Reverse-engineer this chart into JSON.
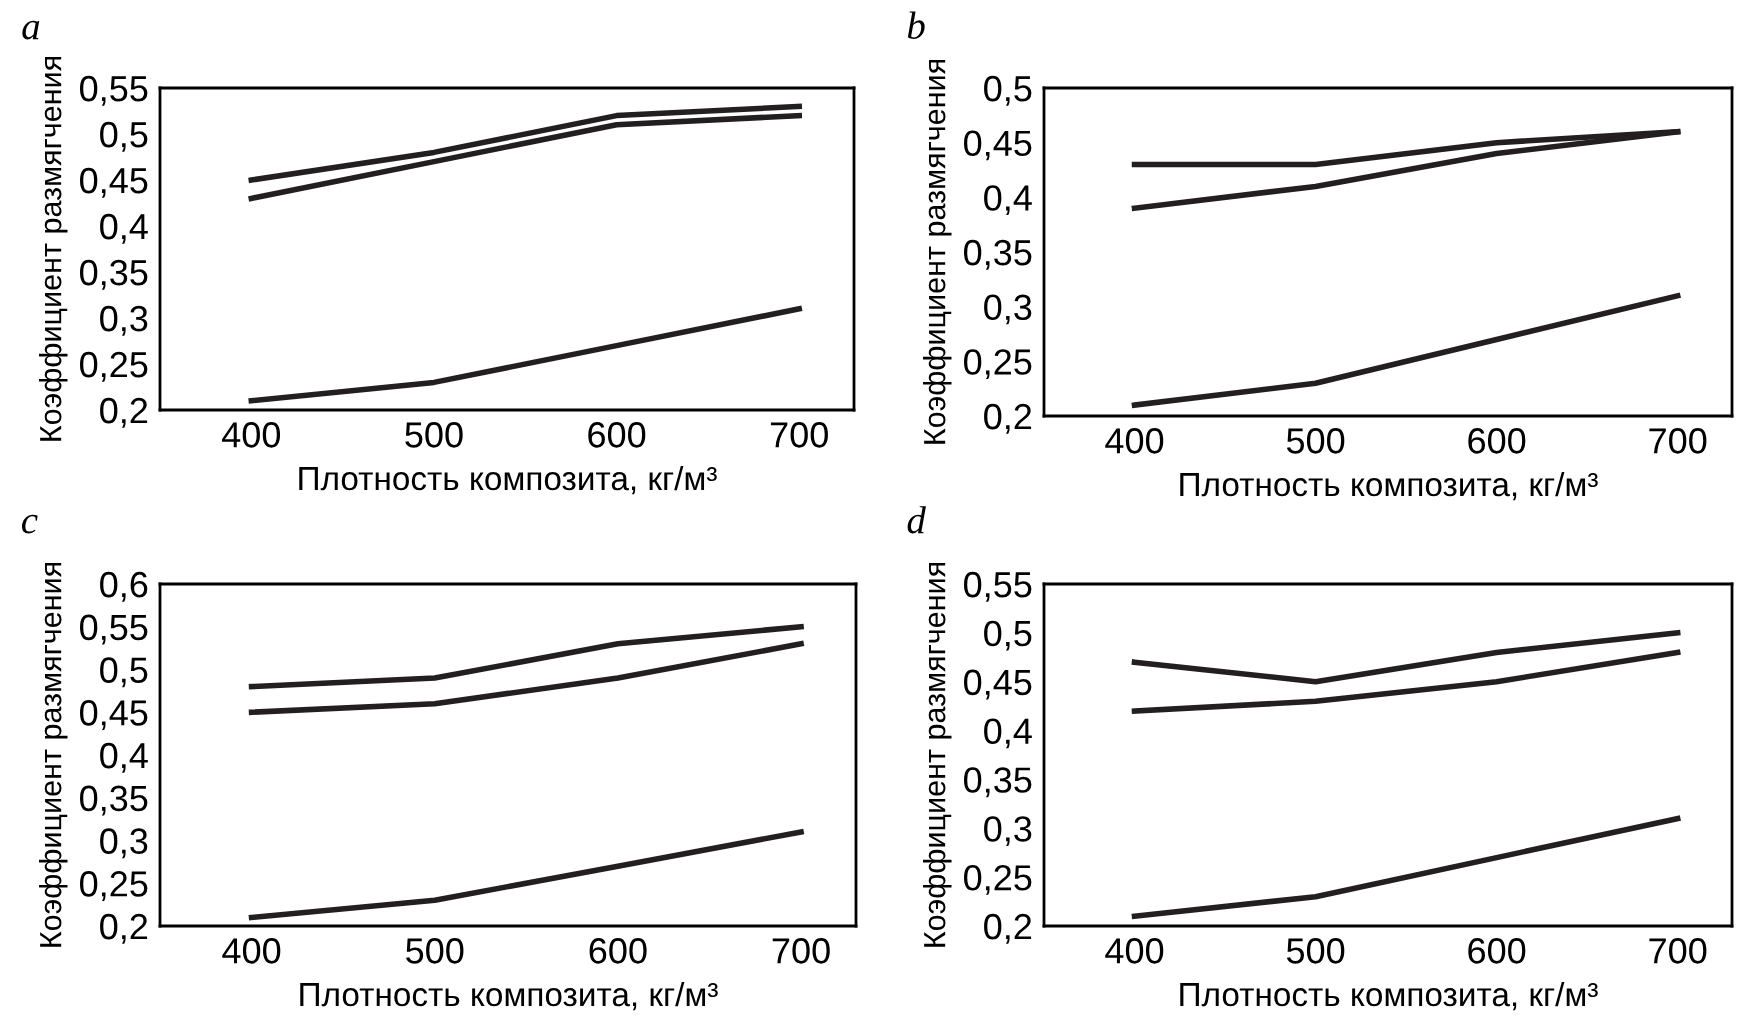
{
  "chart_data": [
    {
      "type": "line",
      "title": "a",
      "xlabel": "Плотность композита, кг/м³",
      "ylabel": "Коэффициент размягчения",
      "x": [
        400,
        500,
        600,
        700
      ],
      "xlim": [
        350,
        730
      ],
      "xticks": [
        400,
        500,
        600,
        700
      ],
      "ylim": [
        0.2,
        0.55
      ],
      "yticks": [
        {
          "value": 0.2,
          "label": "0,2"
        },
        {
          "value": 0.25,
          "label": "0,25"
        },
        {
          "value": 0.3,
          "label": "0,3"
        },
        {
          "value": 0.35,
          "label": "0,35"
        },
        {
          "value": 0.4,
          "label": "0,4"
        },
        {
          "value": 0.45,
          "label": "0,45"
        },
        {
          "value": 0.5,
          "label": "0,5"
        },
        {
          "value": 0.55,
          "label": "0,55"
        }
      ],
      "series": [
        {
          "color": "#231f20",
          "values": [
            0.45,
            0.48,
            0.52,
            0.53
          ]
        },
        {
          "color": "#231f20",
          "values": [
            0.43,
            0.47,
            0.51,
            0.52
          ]
        },
        {
          "color": "#231f20",
          "values": [
            0.21,
            0.23,
            0.27,
            0.31
          ]
        }
      ]
    },
    {
      "type": "line",
      "title": "b",
      "xlabel": "Плотность композита, кг/м³",
      "ylabel": "Коэффициент размягчения",
      "x": [
        400,
        500,
        600,
        700
      ],
      "xlim": [
        350,
        730
      ],
      "xticks": [
        400,
        500,
        600,
        700
      ],
      "ylim": [
        0.2,
        0.5
      ],
      "yticks": [
        {
          "value": 0.2,
          "label": "0,2"
        },
        {
          "value": 0.25,
          "label": "0,25"
        },
        {
          "value": 0.3,
          "label": "0,3"
        },
        {
          "value": 0.35,
          "label": "0,35"
        },
        {
          "value": 0.4,
          "label": "0,4"
        },
        {
          "value": 0.45,
          "label": "0,45"
        },
        {
          "value": 0.5,
          "label": "0,5"
        }
      ],
      "series": [
        {
          "color": "#231f20",
          "values": [
            0.43,
            0.43,
            0.45,
            0.46
          ]
        },
        {
          "color": "#231f20",
          "values": [
            0.39,
            0.41,
            0.44,
            0.46
          ]
        },
        {
          "color": "#231f20",
          "values": [
            0.21,
            0.23,
            0.27,
            0.31
          ]
        }
      ]
    },
    {
      "type": "line",
      "title": "c",
      "xlabel": "Плотность композита, кг/м³",
      "ylabel": "Коэффициент размягчения",
      "x": [
        400,
        500,
        600,
        700
      ],
      "xlim": [
        350,
        730
      ],
      "xticks": [
        400,
        500,
        600,
        700
      ],
      "ylim": [
        0.2,
        0.6
      ],
      "yticks": [
        {
          "value": 0.2,
          "label": "0,2"
        },
        {
          "value": 0.25,
          "label": "0,25"
        },
        {
          "value": 0.3,
          "label": "0,3"
        },
        {
          "value": 0.35,
          "label": "0,35"
        },
        {
          "value": 0.4,
          "label": "0,4"
        },
        {
          "value": 0.45,
          "label": "0,45"
        },
        {
          "value": 0.5,
          "label": "0,5"
        },
        {
          "value": 0.55,
          "label": "0,55"
        },
        {
          "value": 0.6,
          "label": "0,6"
        }
      ],
      "series": [
        {
          "color": "#231f20",
          "values": [
            0.48,
            0.49,
            0.53,
            0.55
          ]
        },
        {
          "color": "#231f20",
          "values": [
            0.45,
            0.46,
            0.49,
            0.53
          ]
        },
        {
          "color": "#231f20",
          "values": [
            0.21,
            0.23,
            0.27,
            0.31
          ]
        }
      ]
    },
    {
      "type": "line",
      "title": "d",
      "xlabel": "Плотность композита, кг/м³",
      "ylabel": "Коэффициент размягчения",
      "x": [
        400,
        500,
        600,
        700
      ],
      "xlim": [
        350,
        730
      ],
      "xticks": [
        400,
        500,
        600,
        700
      ],
      "ylim": [
        0.2,
        0.55
      ],
      "yticks": [
        {
          "value": 0.2,
          "label": "0,2"
        },
        {
          "value": 0.25,
          "label": "0,25"
        },
        {
          "value": 0.3,
          "label": "0,3"
        },
        {
          "value": 0.35,
          "label": "0,35"
        },
        {
          "value": 0.4,
          "label": "0,4"
        },
        {
          "value": 0.45,
          "label": "0,45"
        },
        {
          "value": 0.5,
          "label": "0,5"
        },
        {
          "value": 0.55,
          "label": "0,55"
        }
      ],
      "series": [
        {
          "color": "#231f20",
          "values": [
            0.47,
            0.45,
            0.48,
            0.5
          ]
        },
        {
          "color": "#231f20",
          "values": [
            0.42,
            0.43,
            0.45,
            0.48
          ]
        },
        {
          "color": "#231f20",
          "values": [
            0.21,
            0.23,
            0.27,
            0.31
          ]
        }
      ]
    }
  ]
}
